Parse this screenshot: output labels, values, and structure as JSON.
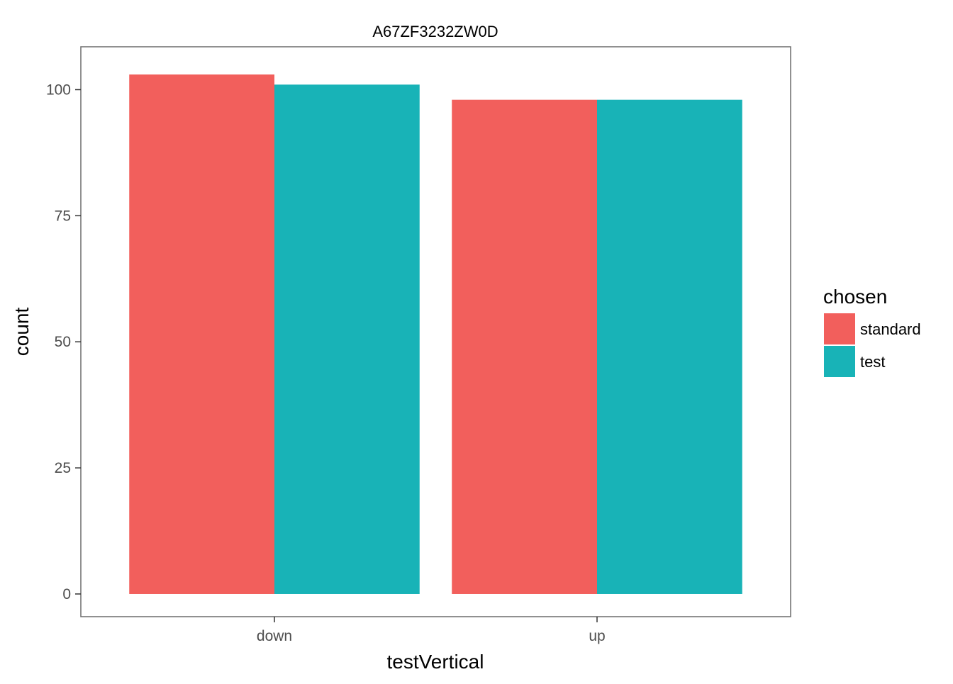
{
  "chart_data": {
    "type": "bar",
    "title": "A67ZF3232ZW0D",
    "xlabel": "testVertical",
    "ylabel": "count",
    "categories": [
      "down",
      "up"
    ],
    "series": [
      {
        "name": "standard",
        "color": "#F25F5C",
        "values": [
          103,
          98
        ]
      },
      {
        "name": "test",
        "color": "#18B3B7",
        "values": [
          101,
          98
        ]
      }
    ],
    "ylim": [
      -4.5,
      108.5
    ],
    "yticks": [
      0,
      25,
      50,
      75,
      100
    ],
    "legend": {
      "title": "chosen",
      "position": "right"
    },
    "grid": false
  }
}
